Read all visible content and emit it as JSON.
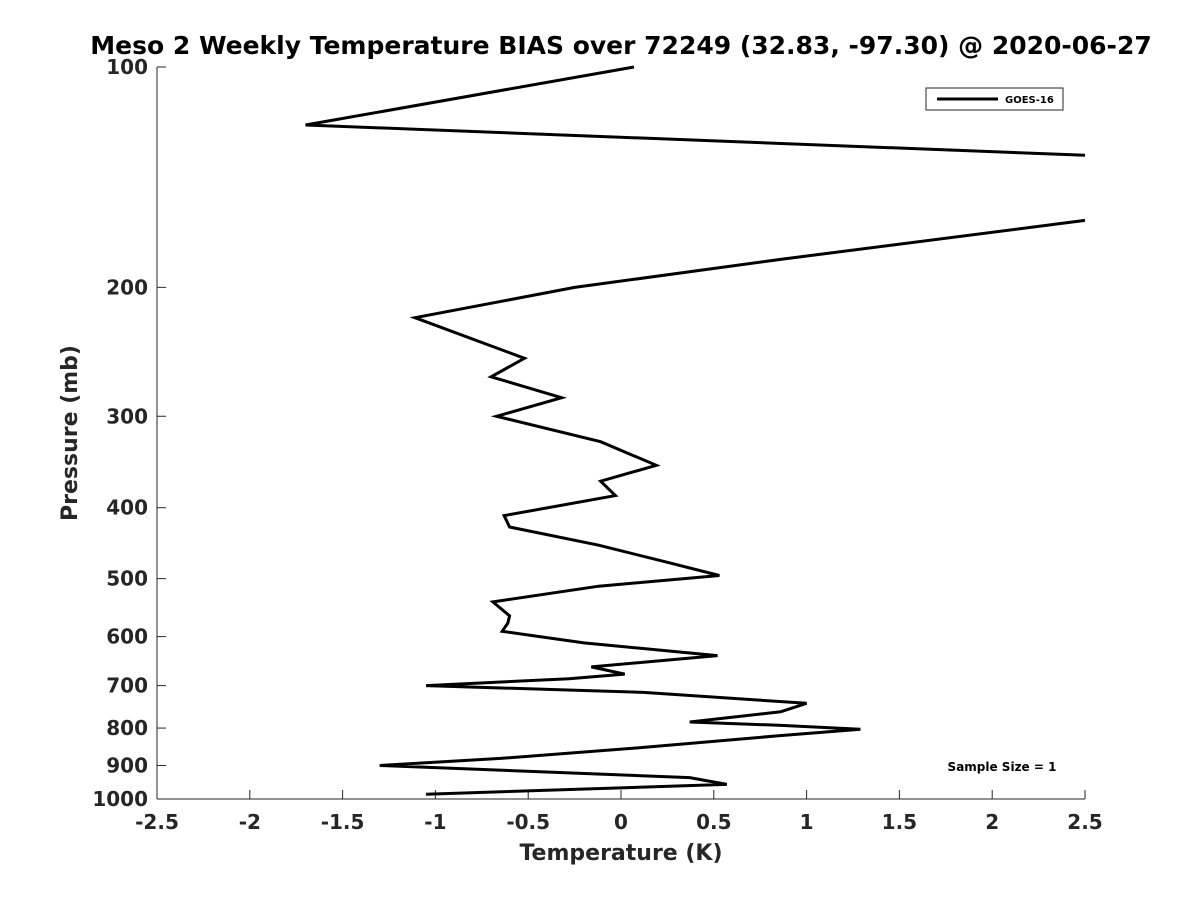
{
  "chart_data": {
    "type": "line",
    "title": "Meso 2 Weekly Temperature BIAS over 72249 (32.83, -97.30) @ 2020-06-27",
    "xlabel": "Temperature (K)",
    "ylabel": "Pressure (mb)",
    "xlim": [
      -2.5,
      2.5
    ],
    "ylim": [
      1000,
      100
    ],
    "y_scale": "log",
    "grid": false,
    "legend_position": "top-right",
    "x_ticks": [
      "-2.5",
      "-2",
      "-1.5",
      "-1",
      "-0.5",
      "0",
      "0.5",
      "1",
      "1.5",
      "2",
      "2.5"
    ],
    "y_ticks": [
      "100",
      "200",
      "300",
      "400",
      "500",
      "600",
      "700",
      "800",
      "900",
      "1000"
    ],
    "annotation": "Sample Size = 1",
    "series": [
      {
        "name": "GOES-16",
        "color": "#000000",
        "points": [
          {
            "x": 0.07,
            "y": 100
          },
          {
            "x": -1.7,
            "y": 120
          },
          {
            "x": 2.5,
            "y": 132
          },
          {
            "x": null,
            "y": 150
          },
          {
            "x": 2.5,
            "y": 162
          },
          {
            "x": 0.87,
            "y": 183
          },
          {
            "x": -0.25,
            "y": 200
          },
          {
            "x": -1.11,
            "y": 220
          },
          {
            "x": -0.52,
            "y": 250
          },
          {
            "x": -0.7,
            "y": 265
          },
          {
            "x": -0.32,
            "y": 283
          },
          {
            "x": -0.67,
            "y": 300
          },
          {
            "x": -0.11,
            "y": 325
          },
          {
            "x": 0.19,
            "y": 350
          },
          {
            "x": -0.11,
            "y": 368
          },
          {
            "x": -0.03,
            "y": 385
          },
          {
            "x": -0.63,
            "y": 410
          },
          {
            "x": -0.6,
            "y": 425
          },
          {
            "x": -0.12,
            "y": 450
          },
          {
            "x": 0.25,
            "y": 475
          },
          {
            "x": 0.53,
            "y": 495
          },
          {
            "x": -0.12,
            "y": 512
          },
          {
            "x": -0.69,
            "y": 538
          },
          {
            "x": -0.6,
            "y": 562
          },
          {
            "x": -0.61,
            "y": 575
          },
          {
            "x": -0.64,
            "y": 590
          },
          {
            "x": -0.2,
            "y": 612
          },
          {
            "x": 0.52,
            "y": 637
          },
          {
            "x": -0.16,
            "y": 660
          },
          {
            "x": 0.02,
            "y": 675
          },
          {
            "x": -0.28,
            "y": 685
          },
          {
            "x": -1.05,
            "y": 700
          },
          {
            "x": 0.12,
            "y": 715
          },
          {
            "x": 1.0,
            "y": 740
          },
          {
            "x": 0.86,
            "y": 760
          },
          {
            "x": 0.37,
            "y": 785
          },
          {
            "x": 0.85,
            "y": 793
          },
          {
            "x": 1.29,
            "y": 803
          },
          {
            "x": 0.84,
            "y": 820
          },
          {
            "x": 0.13,
            "y": 850
          },
          {
            "x": -0.65,
            "y": 880
          },
          {
            "x": -1.3,
            "y": 900
          },
          {
            "x": 0.37,
            "y": 935
          },
          {
            "x": 0.57,
            "y": 955
          },
          {
            "x": -1.05,
            "y": 985
          }
        ]
      }
    ]
  }
}
